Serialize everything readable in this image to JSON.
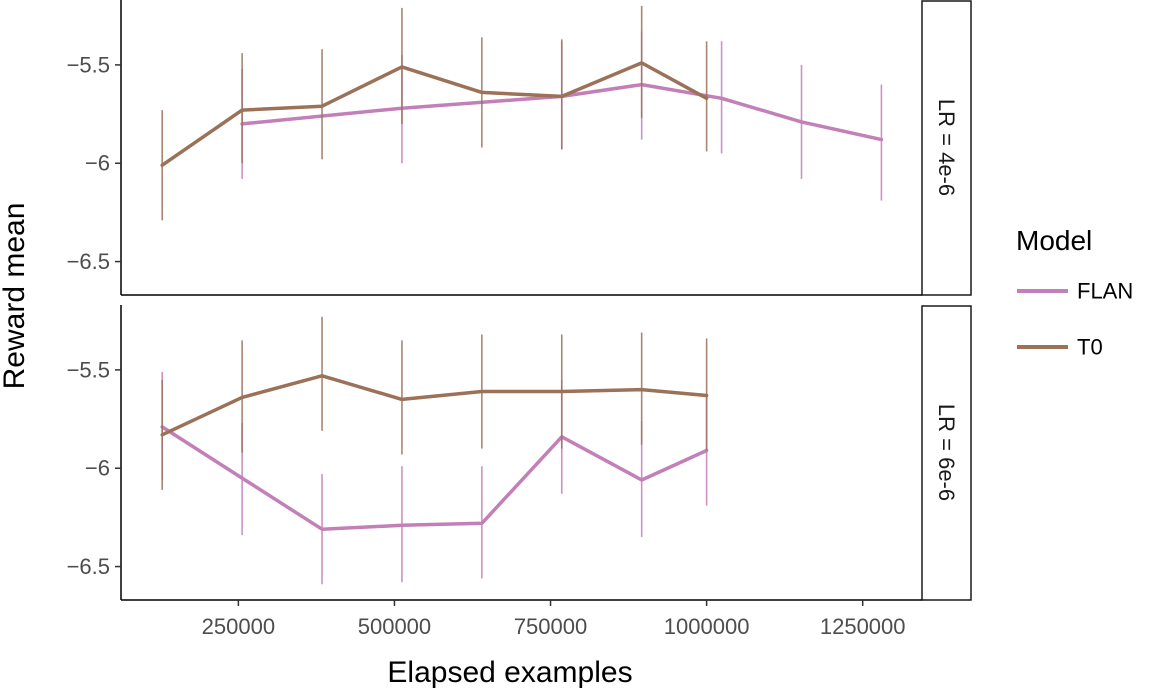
{
  "chart_data": {
    "type": "line",
    "xlabel": "Elapsed examples",
    "ylabel": "Reward mean",
    "xlim": [
      62000,
      1345000
    ],
    "x_ticks": [
      250000,
      500000,
      750000,
      1000000,
      1250000
    ],
    "x_tick_labels": [
      "250000",
      "500000",
      "750000",
      "1000000",
      "1250000"
    ],
    "ylim": [
      -6.67,
      -5.17
    ],
    "y_ticks": [
      -5.5,
      -6,
      -6.5
    ],
    "y_tick_labels": [
      "−5.5",
      "−6",
      "−6.5"
    ],
    "grid": false,
    "error_bars": true,
    "legend": {
      "title": "Model",
      "position": "right",
      "entries": [
        {
          "name": "FLAN",
          "color": "#c27fb8"
        },
        {
          "name": "T0",
          "color": "#9b7158"
        }
      ]
    },
    "facets": [
      {
        "label": "LR = 4e-6",
        "series": [
          {
            "name": "FLAN",
            "color": "#c27fb8",
            "x": [
              256000,
              512000,
              768000,
              896000,
              1024000,
              1152000,
              1280000
            ],
            "y": [
              -5.8,
              -5.72,
              -5.66,
              -5.6,
              -5.67,
              -5.79,
              -5.88
            ],
            "err_low": [
              -6.08,
              -6.0,
              -5.93,
              -5.88,
              -5.95,
              -6.08,
              -6.19
            ],
            "err_high": [
              -5.52,
              -5.45,
              -5.38,
              -5.33,
              -5.38,
              -5.5,
              -5.6
            ]
          },
          {
            "name": "T0",
            "color": "#9b7158",
            "x": [
              128000,
              256000,
              384000,
              512000,
              640000,
              768000,
              896000,
              1000000
            ],
            "y": [
              -6.01,
              -5.73,
              -5.71,
              -5.51,
              -5.64,
              -5.66,
              -5.49,
              -5.67
            ],
            "err_low": [
              -6.29,
              -6.0,
              -5.98,
              -5.8,
              -5.92,
              -5.93,
              -5.77,
              -5.94
            ],
            "err_high": [
              -5.73,
              -5.44,
              -5.42,
              -5.21,
              -5.36,
              -5.37,
              -5.2,
              -5.38
            ]
          }
        ]
      },
      {
        "label": "LR = 6e-6",
        "series": [
          {
            "name": "FLAN",
            "color": "#c27fb8",
            "x": [
              128000,
              256000,
              384000,
              512000,
              640000,
              768000,
              896000,
              1000000
            ],
            "y": [
              -5.79,
              -6.05,
              -6.31,
              -6.29,
              -6.28,
              -5.84,
              -6.06,
              -5.91
            ],
            "err_low": [
              -6.06,
              -6.34,
              -6.59,
              -6.58,
              -6.56,
              -6.13,
              -6.35,
              -6.19
            ],
            "err_high": [
              -5.51,
              -5.77,
              -6.03,
              -5.99,
              -5.99,
              -5.55,
              -5.76,
              -5.63
            ]
          },
          {
            "name": "T0",
            "color": "#9b7158",
            "x": [
              128000,
              256000,
              384000,
              512000,
              640000,
              768000,
              896000,
              1000000
            ],
            "y": [
              -5.83,
              -5.64,
              -5.53,
              -5.65,
              -5.61,
              -5.61,
              -5.6,
              -5.63
            ],
            "err_low": [
              -6.11,
              -5.92,
              -5.81,
              -5.93,
              -5.9,
              -5.9,
              -5.88,
              -5.91
            ],
            "err_high": [
              -5.55,
              -5.35,
              -5.23,
              -5.35,
              -5.32,
              -5.32,
              -5.31,
              -5.34
            ]
          }
        ]
      }
    ]
  }
}
